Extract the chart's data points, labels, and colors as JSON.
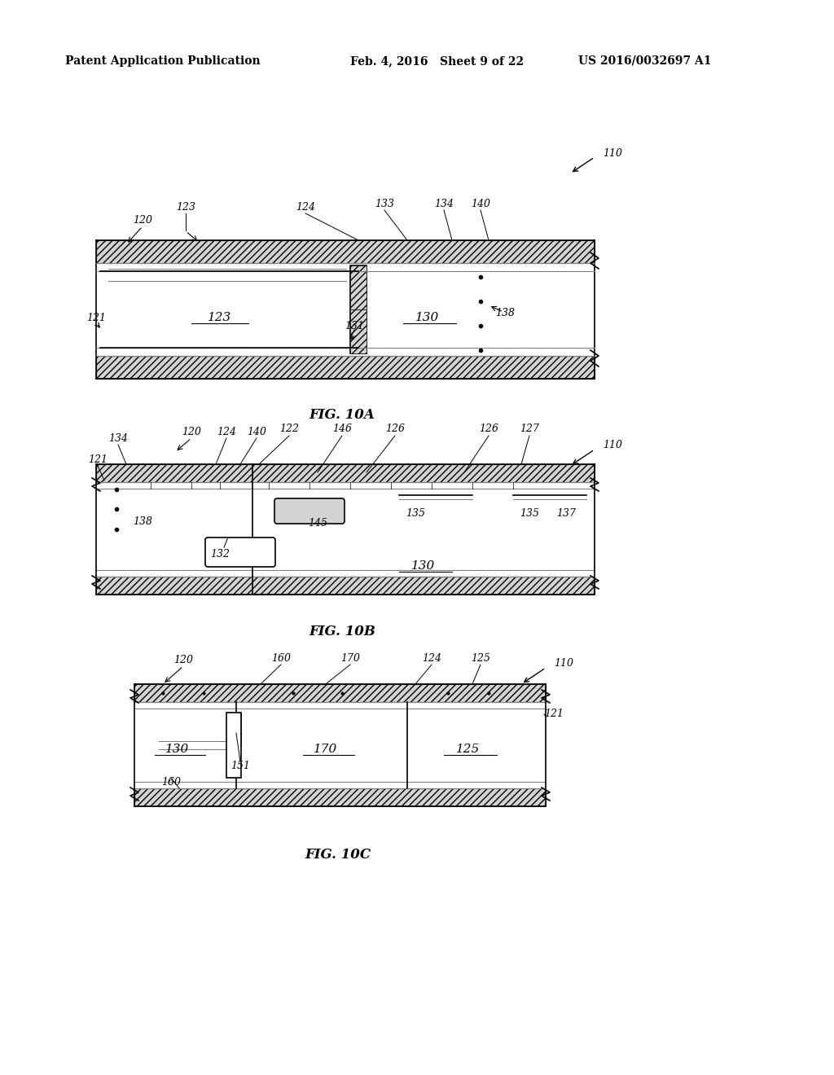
{
  "bg_color": "#ffffff",
  "header_left": "Patent Application Publication",
  "header_mid": "Feb. 4, 2016   Sheet 9 of 22",
  "header_right": "US 2016/0032697 A1",
  "fig10a_label": "FIG. 10A",
  "fig10b_label": "FIG. 10B",
  "fig10c_label": "FIG. 10C",
  "ref_110": "110",
  "ref_120": "120",
  "ref_121": "121",
  "ref_123_a": "123",
  "ref_123_b": "123",
  "ref_124_a": "124",
  "ref_130_a": "130",
  "ref_131": "131",
  "ref_133": "133",
  "ref_134_a": "134",
  "ref_138_a": "138",
  "ref_140_a": "140",
  "line_color": "#000000",
  "hatch_color": "#000000",
  "fill_color": "#ffffff"
}
